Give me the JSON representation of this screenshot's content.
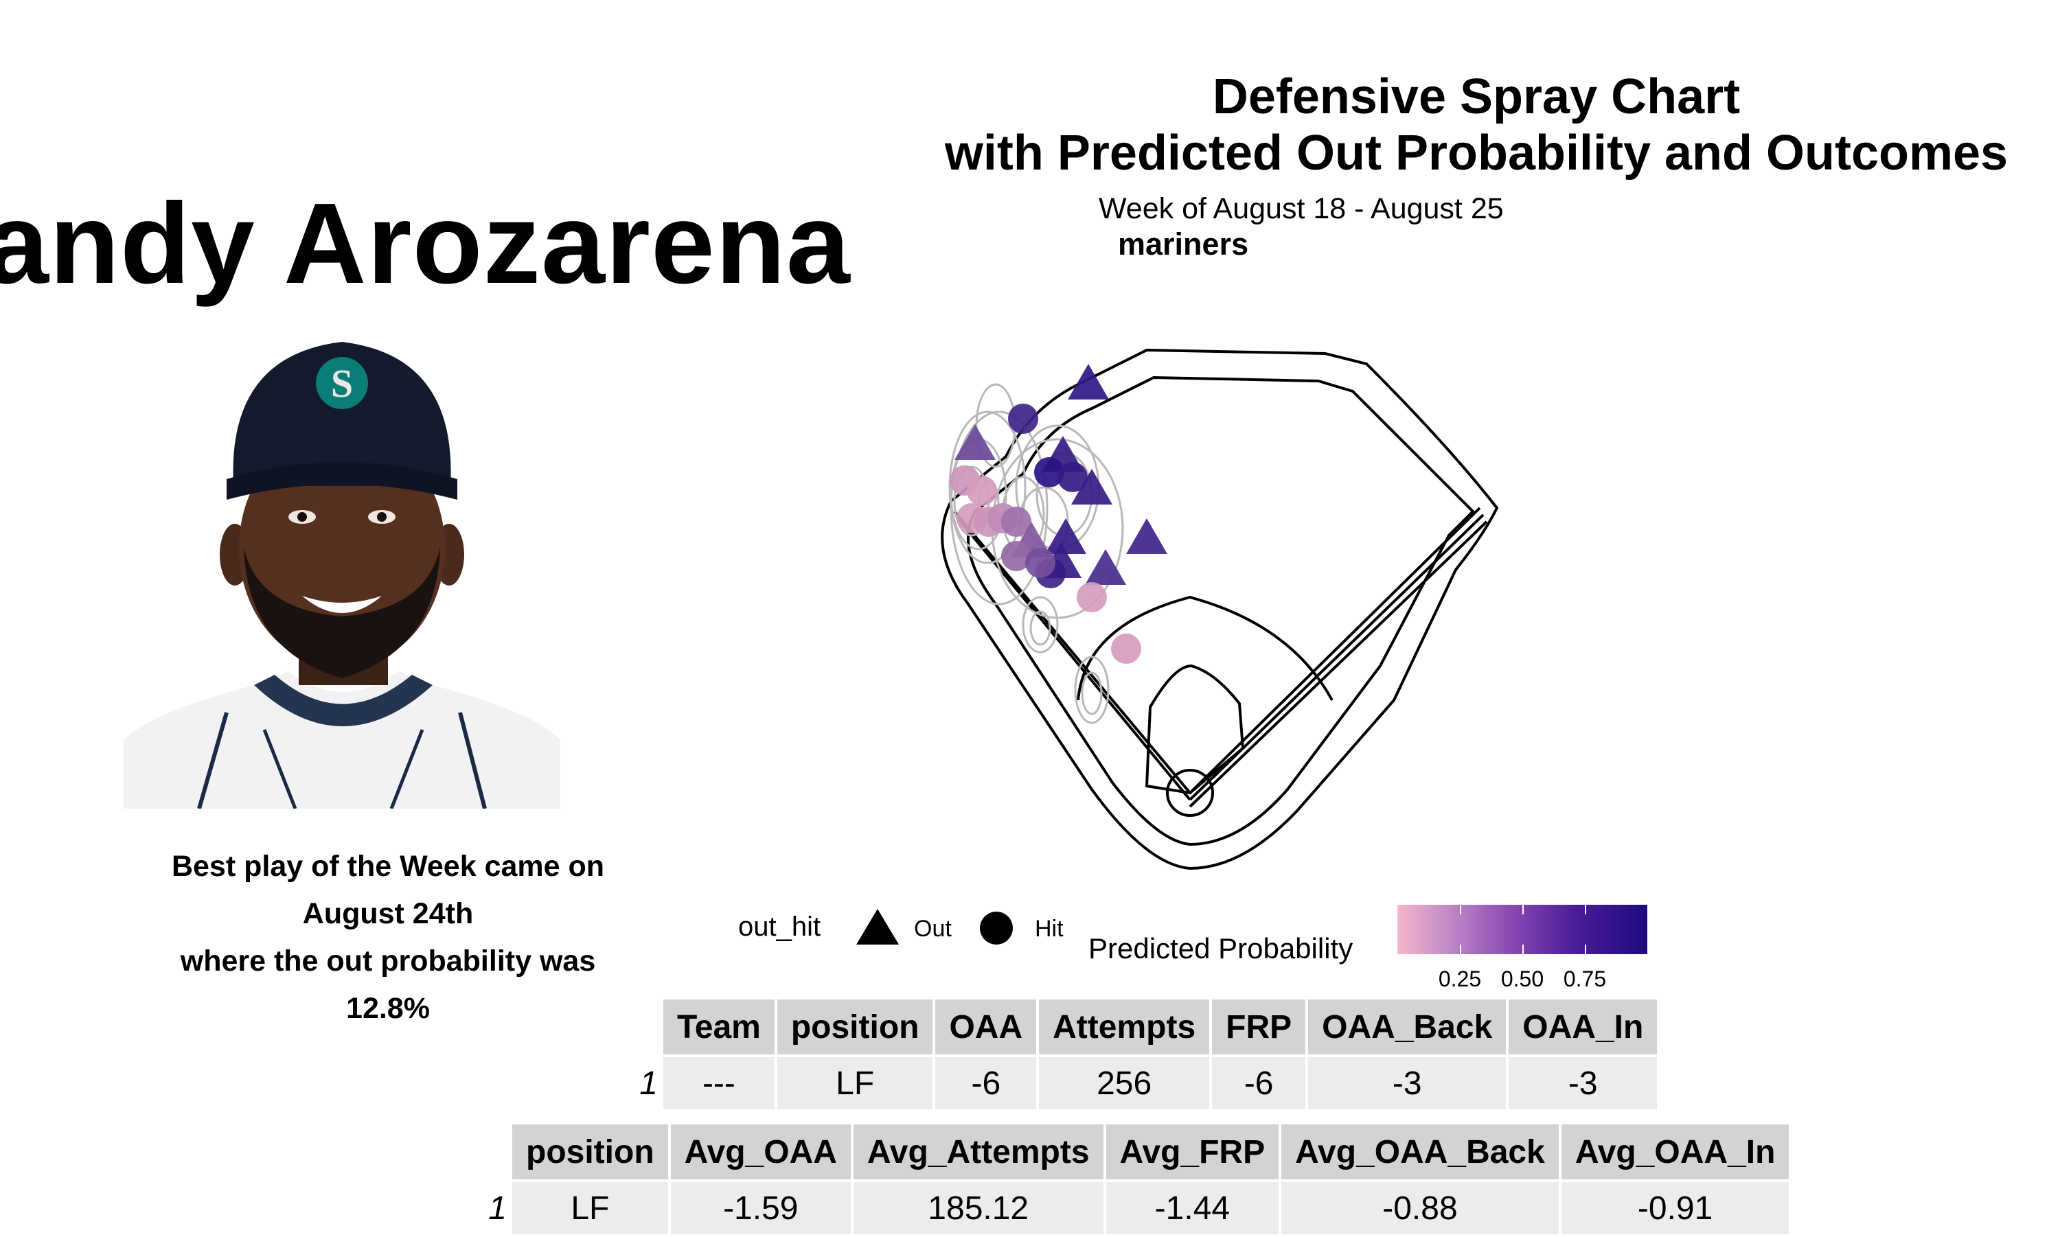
{
  "player": {
    "name": "andy Arozarena",
    "best_play_lines": [
      "Best play of the Week came on",
      "August 24th",
      "where the out probability was",
      "12.8%"
    ]
  },
  "chart_data": {
    "type": "scatter",
    "title_line1": "Defensive Spray Chart",
    "title_line2": "with Predicted Out Probability and Outcomes",
    "subtitle": "Week of August 18 - August 25",
    "team": "mariners",
    "shape_legend": {
      "title": "out_hit",
      "items": [
        {
          "label": "Out",
          "shape": "triangle"
        },
        {
          "label": "Hit",
          "shape": "circle"
        }
      ]
    },
    "color_legend": {
      "title": "Predicted Probability",
      "ticks": [
        "0.25",
        "0.50",
        "0.75"
      ],
      "low_color": "#f7b6c9",
      "high_color": "#1e0a7e"
    }
  },
  "team_table": {
    "headers": [
      "Team",
      "position",
      "OAA",
      "Attempts",
      "FRP",
      "OAA_Back",
      "OAA_In"
    ],
    "row_index": "1",
    "row": [
      "---",
      "LF",
      "-6",
      "256",
      "-6",
      "-3",
      "-3"
    ]
  },
  "avg_table": {
    "headers": [
      "position",
      "Avg_OAA",
      "Avg_Attempts",
      "Avg_FRP",
      "Avg_OAA_Back",
      "Avg_OAA_In"
    ],
    "row_index": "1",
    "row": [
      "LF",
      "-1.59",
      "185.12",
      "-1.44",
      "-0.88",
      "-0.91"
    ]
  }
}
